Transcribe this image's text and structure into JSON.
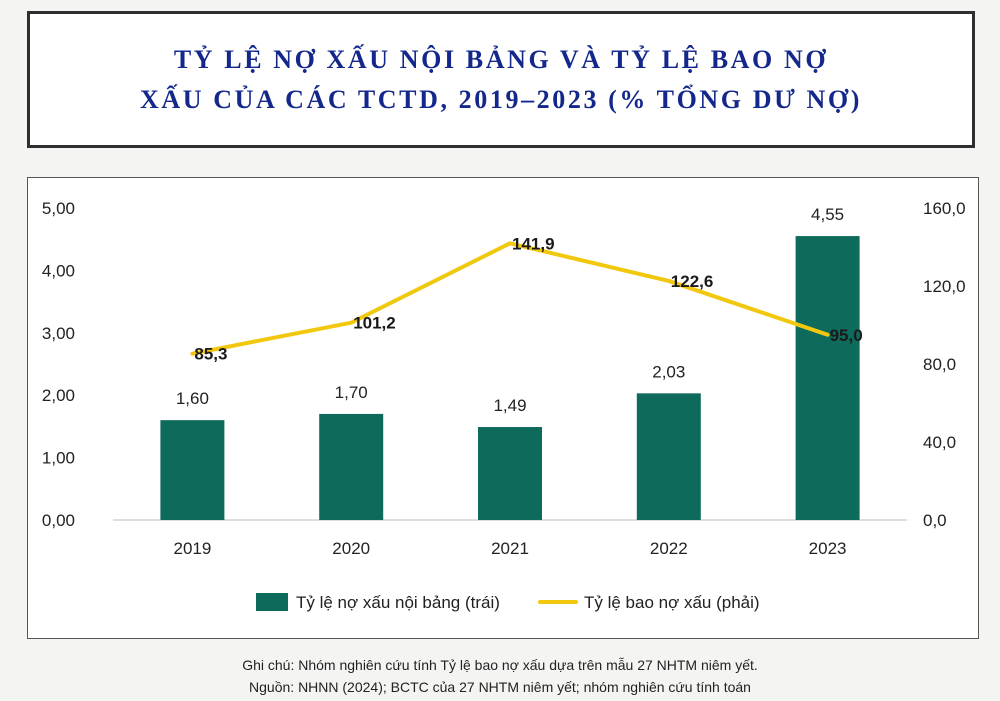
{
  "title": {
    "line1": "TỶ LỆ NỢ XẤU NỘI BẢNG VÀ TỶ LỆ BAO NỢ",
    "line2": "XẤU CỦA CÁC TCTD, 2019–2023 (% TỔNG DƯ NỢ)"
  },
  "chart_data": {
    "type": "bar",
    "categories": [
      "2019",
      "2020",
      "2021",
      "2022",
      "2023"
    ],
    "series": [
      {
        "name": "Tỷ lệ nợ xấu nội bảng (trái)",
        "chart_type": "bar",
        "axis": "left",
        "color": "#0e6b5c",
        "values": [
          1.6,
          1.7,
          1.49,
          2.03,
          4.55
        ],
        "labels": [
          "1,60",
          "1,70",
          "1,49",
          "2,03",
          "4,55"
        ]
      },
      {
        "name": "Tỷ lệ bao nợ xấu (phải)",
        "chart_type": "line",
        "axis": "right",
        "color": "#f2c80f",
        "values": [
          85.3,
          101.2,
          141.9,
          122.6,
          95.0
        ],
        "labels": [
          "85,3",
          "101,2",
          "141,9",
          "122,6",
          "95,0"
        ]
      }
    ],
    "left_axis": {
      "ylim": [
        0,
        5
      ],
      "ticks": [
        0,
        1,
        2,
        3,
        4,
        5
      ],
      "tick_labels": [
        "0,00",
        "1,00",
        "2,00",
        "3,00",
        "4,00",
        "5,00"
      ]
    },
    "right_axis": {
      "ylim": [
        0,
        160
      ],
      "ticks": [
        0,
        40,
        80,
        120,
        160
      ],
      "tick_labels": [
        "0,0",
        "40,0",
        "80,0",
        "120,0",
        "160,0"
      ]
    },
    "grid": false,
    "legend_position": "bottom"
  },
  "note": {
    "line1": "Ghi chú: Nhóm nghiên cứu tính Tỷ lệ bao nợ xấu dựa trên mẫu 27 NHTM niêm yết.",
    "line2": "Nguồn: NHNN (2024); BCTC của 27 NHTM niêm yết; nhóm nghiên cứu tính toán"
  }
}
